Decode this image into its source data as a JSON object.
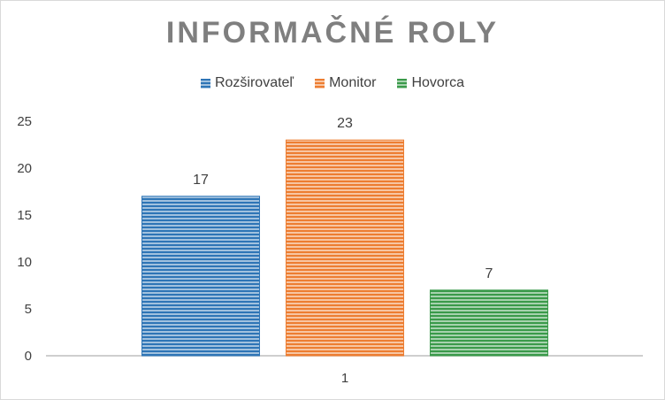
{
  "chart_data": {
    "type": "bar",
    "title": "INFORMAČNÉ ROLY",
    "categories": [
      "1"
    ],
    "series": [
      {
        "name": "Rozširovateľ",
        "values": [
          17
        ],
        "color": "#2e75b6"
      },
      {
        "name": "Monitor",
        "values": [
          23
        ],
        "color": "#ed7d31"
      },
      {
        "name": "Hovorca",
        "values": [
          7
        ],
        "color": "#3a9a4a"
      }
    ],
    "yticks": [
      "0",
      "5",
      "10",
      "15",
      "20",
      "25"
    ],
    "ylim": [
      0,
      25
    ],
    "legend_position": "top",
    "grid": false,
    "data_labels": true
  }
}
